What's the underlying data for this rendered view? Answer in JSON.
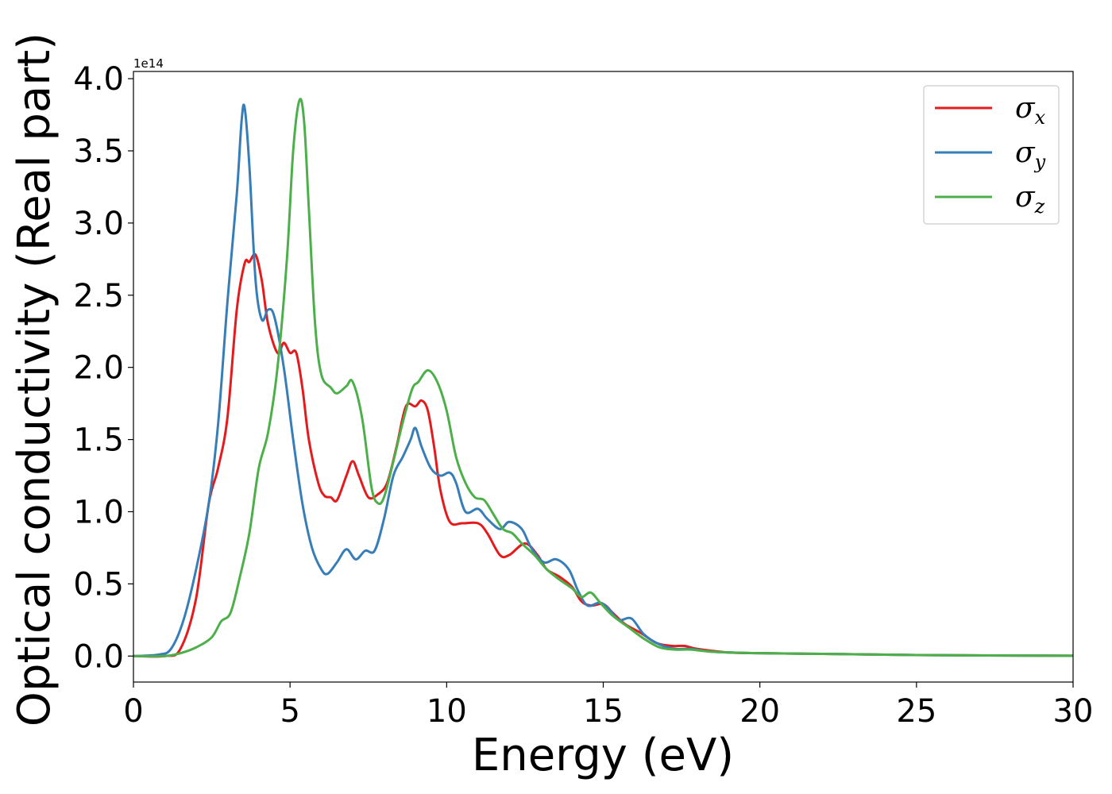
{
  "chart_data": {
    "type": "line",
    "xlabel": "Energy (eV)",
    "ylabel": "Optical conductivity (Real part)",
    "y_offset_label": "1e14",
    "xlim": [
      0,
      30
    ],
    "ylim": [
      -0.18,
      4.05
    ],
    "x_ticks": [
      0,
      5,
      10,
      15,
      20,
      25,
      30
    ],
    "x_tick_labels": [
      "0",
      "5",
      "10",
      "15",
      "20",
      "25",
      "30"
    ],
    "y_ticks": [
      0.0,
      0.5,
      1.0,
      1.5,
      2.0,
      2.5,
      3.0,
      3.5,
      4.0
    ],
    "y_tick_labels": [
      "0.0",
      "0.5",
      "1.0",
      "1.5",
      "2.0",
      "2.5",
      "3.0",
      "3.5",
      "4.0"
    ],
    "legend_position": "top-right",
    "grid": false,
    "series": [
      {
        "name": "σx",
        "name_base": "σ",
        "name_sub": "x",
        "color": "#e41a1c",
        "points": [
          [
            0,
            0
          ],
          [
            1.0,
            0.0
          ],
          [
            1.5,
            0.05
          ],
          [
            2.0,
            0.4
          ],
          [
            2.4,
            1.05
          ],
          [
            2.7,
            1.3
          ],
          [
            3.0,
            1.65
          ],
          [
            3.3,
            2.4
          ],
          [
            3.55,
            2.72
          ],
          [
            3.7,
            2.73
          ],
          [
            3.9,
            2.78
          ],
          [
            4.1,
            2.6
          ],
          [
            4.3,
            2.3
          ],
          [
            4.6,
            2.1
          ],
          [
            4.8,
            2.17
          ],
          [
            5.0,
            2.1
          ],
          [
            5.2,
            2.1
          ],
          [
            5.4,
            1.85
          ],
          [
            5.6,
            1.5
          ],
          [
            5.9,
            1.2
          ],
          [
            6.1,
            1.11
          ],
          [
            6.3,
            1.1
          ],
          [
            6.5,
            1.08
          ],
          [
            6.8,
            1.25
          ],
          [
            7.0,
            1.35
          ],
          [
            7.2,
            1.25
          ],
          [
            7.5,
            1.1
          ],
          [
            7.8,
            1.12
          ],
          [
            8.1,
            1.2
          ],
          [
            8.4,
            1.45
          ],
          [
            8.7,
            1.73
          ],
          [
            9.0,
            1.73
          ],
          [
            9.2,
            1.77
          ],
          [
            9.4,
            1.7
          ],
          [
            9.6,
            1.45
          ],
          [
            9.8,
            1.15
          ],
          [
            10.1,
            0.93
          ],
          [
            10.5,
            0.92
          ],
          [
            11.0,
            0.92
          ],
          [
            11.3,
            0.85
          ],
          [
            11.7,
            0.7
          ],
          [
            12.0,
            0.7
          ],
          [
            12.5,
            0.78
          ],
          [
            12.9,
            0.7
          ],
          [
            13.2,
            0.6
          ],
          [
            13.6,
            0.55
          ],
          [
            14.0,
            0.48
          ],
          [
            14.3,
            0.38
          ],
          [
            14.6,
            0.35
          ],
          [
            15.0,
            0.36
          ],
          [
            15.3,
            0.3
          ],
          [
            15.7,
            0.22
          ],
          [
            16.2,
            0.16
          ],
          [
            16.7,
            0.09
          ],
          [
            17.2,
            0.07
          ],
          [
            17.6,
            0.07
          ],
          [
            18.0,
            0.05
          ],
          [
            19.0,
            0.025
          ],
          [
            20.0,
            0.02
          ],
          [
            22.0,
            0.015
          ],
          [
            25.0,
            0.007
          ],
          [
            30.0,
            0.002
          ]
        ]
      },
      {
        "name": "σy",
        "name_base": "σ",
        "name_sub": "y",
        "color": "#377eb8",
        "points": [
          [
            0,
            0
          ],
          [
            0.8,
            0.01
          ],
          [
            1.2,
            0.05
          ],
          [
            1.6,
            0.25
          ],
          [
            2.0,
            0.6
          ],
          [
            2.4,
            1.05
          ],
          [
            2.7,
            1.6
          ],
          [
            3.0,
            2.45
          ],
          [
            3.3,
            3.2
          ],
          [
            3.45,
            3.7
          ],
          [
            3.55,
            3.8
          ],
          [
            3.7,
            3.4
          ],
          [
            3.9,
            2.6
          ],
          [
            4.1,
            2.33
          ],
          [
            4.3,
            2.4
          ],
          [
            4.5,
            2.35
          ],
          [
            4.8,
            2.0
          ],
          [
            5.1,
            1.5
          ],
          [
            5.4,
            1.05
          ],
          [
            5.7,
            0.75
          ],
          [
            6.0,
            0.6
          ],
          [
            6.2,
            0.57
          ],
          [
            6.5,
            0.65
          ],
          [
            6.8,
            0.74
          ],
          [
            7.1,
            0.67
          ],
          [
            7.4,
            0.73
          ],
          [
            7.7,
            0.73
          ],
          [
            8.0,
            0.95
          ],
          [
            8.3,
            1.25
          ],
          [
            8.6,
            1.38
          ],
          [
            8.85,
            1.5
          ],
          [
            9.0,
            1.58
          ],
          [
            9.2,
            1.45
          ],
          [
            9.5,
            1.3
          ],
          [
            9.8,
            1.25
          ],
          [
            10.1,
            1.27
          ],
          [
            10.3,
            1.2
          ],
          [
            10.6,
            1.0
          ],
          [
            11.0,
            1.02
          ],
          [
            11.3,
            0.95
          ],
          [
            11.7,
            0.88
          ],
          [
            12.0,
            0.93
          ],
          [
            12.4,
            0.88
          ],
          [
            12.7,
            0.75
          ],
          [
            13.1,
            0.65
          ],
          [
            13.5,
            0.67
          ],
          [
            13.9,
            0.6
          ],
          [
            14.2,
            0.45
          ],
          [
            14.5,
            0.35
          ],
          [
            14.9,
            0.37
          ],
          [
            15.2,
            0.32
          ],
          [
            15.5,
            0.25
          ],
          [
            15.9,
            0.26
          ],
          [
            16.3,
            0.15
          ],
          [
            16.8,
            0.08
          ],
          [
            17.3,
            0.05
          ],
          [
            17.8,
            0.05
          ],
          [
            18.5,
            0.03
          ],
          [
            20.0,
            0.02
          ],
          [
            22.0,
            0.015
          ],
          [
            25.0,
            0.007
          ],
          [
            30.0,
            0.002
          ]
        ]
      },
      {
        "name": "σz",
        "name_base": "σ",
        "name_sub": "z",
        "color": "#4daf4a",
        "points": [
          [
            0,
            0
          ],
          [
            1.0,
            0.0
          ],
          [
            1.5,
            0.02
          ],
          [
            2.0,
            0.06
          ],
          [
            2.5,
            0.13
          ],
          [
            2.8,
            0.24
          ],
          [
            3.1,
            0.3
          ],
          [
            3.4,
            0.55
          ],
          [
            3.7,
            0.85
          ],
          [
            4.0,
            1.3
          ],
          [
            4.3,
            1.55
          ],
          [
            4.6,
            2.0
          ],
          [
            4.9,
            2.75
          ],
          [
            5.1,
            3.5
          ],
          [
            5.3,
            3.85
          ],
          [
            5.45,
            3.7
          ],
          [
            5.6,
            3.1
          ],
          [
            5.8,
            2.3
          ],
          [
            6.0,
            1.95
          ],
          [
            6.3,
            1.86
          ],
          [
            6.5,
            1.82
          ],
          [
            6.8,
            1.87
          ],
          [
            7.0,
            1.9
          ],
          [
            7.3,
            1.65
          ],
          [
            7.6,
            1.17
          ],
          [
            7.8,
            1.06
          ],
          [
            8.0,
            1.1
          ],
          [
            8.3,
            1.35
          ],
          [
            8.6,
            1.62
          ],
          [
            8.9,
            1.85
          ],
          [
            9.1,
            1.9
          ],
          [
            9.4,
            1.98
          ],
          [
            9.7,
            1.9
          ],
          [
            10.0,
            1.7
          ],
          [
            10.3,
            1.38
          ],
          [
            10.6,
            1.2
          ],
          [
            10.9,
            1.1
          ],
          [
            11.2,
            1.08
          ],
          [
            11.5,
            0.98
          ],
          [
            11.8,
            0.88
          ],
          [
            12.1,
            0.85
          ],
          [
            12.4,
            0.78
          ],
          [
            12.8,
            0.7
          ],
          [
            13.2,
            0.6
          ],
          [
            13.6,
            0.53
          ],
          [
            14.0,
            0.47
          ],
          [
            14.3,
            0.41
          ],
          [
            14.6,
            0.44
          ],
          [
            14.9,
            0.37
          ],
          [
            15.3,
            0.28
          ],
          [
            15.8,
            0.2
          ],
          [
            16.3,
            0.12
          ],
          [
            16.8,
            0.06
          ],
          [
            17.3,
            0.045
          ],
          [
            17.8,
            0.045
          ],
          [
            18.5,
            0.03
          ],
          [
            20.0,
            0.02
          ],
          [
            22.0,
            0.015
          ],
          [
            25.0,
            0.007
          ],
          [
            30.0,
            0.002
          ]
        ]
      }
    ]
  }
}
